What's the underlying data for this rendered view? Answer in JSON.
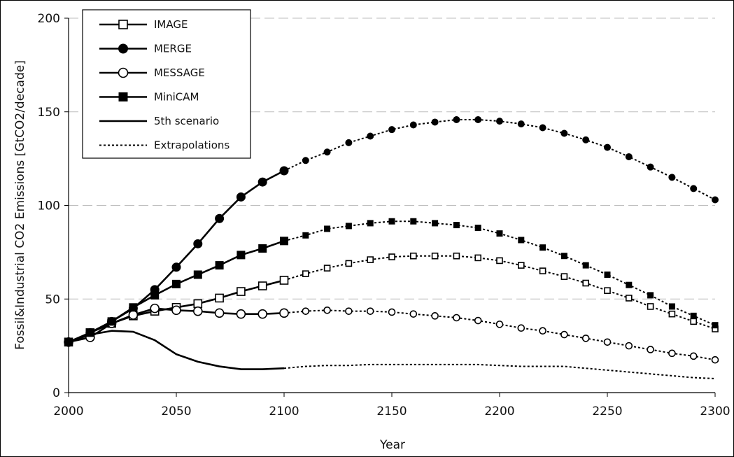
{
  "chart_data": {
    "type": "line",
    "title": "",
    "xlabel": "Year",
    "ylabel": "Fossil&Industrial CO2 Emissions [GtCO2/decade]",
    "xlim": [
      2000,
      2300
    ],
    "ylim": [
      0,
      200
    ],
    "x_ticks": [
      "2000",
      "2050",
      "2100",
      "2150",
      "2200",
      "2250",
      "2300"
    ],
    "y_ticks": [
      "0",
      "50",
      "100",
      "150",
      "200"
    ],
    "grid": "horizontal dashed",
    "legend_position": "top-left",
    "series": [
      {
        "name": "IMAGE",
        "marker": "open-square",
        "x": [
          2000,
          2010,
          2020,
          2030,
          2040,
          2050,
          2060,
          2070,
          2080,
          2090,
          2100
        ],
        "values": [
          27,
          32,
          37,
          41,
          43.5,
          45.5,
          47.5,
          50.5,
          54,
          57,
          60
        ],
        "extrapolation_x": [
          2110,
          2120,
          2130,
          2140,
          2150,
          2160,
          2170,
          2180,
          2190,
          2200,
          2210,
          2220,
          2230,
          2240,
          2250,
          2260,
          2270,
          2280,
          2290,
          2300
        ],
        "extrapolation_values": [
          63.5,
          66.5,
          69,
          71,
          72.5,
          73,
          73,
          73,
          72,
          70.5,
          68,
          65,
          62,
          58.5,
          54.5,
          50.5,
          46,
          42,
          38,
          34
        ]
      },
      {
        "name": "MERGE",
        "marker": "filled-circle",
        "x": [
          2000,
          2010,
          2020,
          2030,
          2040,
          2050,
          2060,
          2070,
          2080,
          2090,
          2100
        ],
        "values": [
          27,
          32,
          38,
          45,
          55,
          67,
          79.5,
          93,
          104.5,
          112.5,
          118.5
        ],
        "extrapolation_x": [
          2110,
          2120,
          2130,
          2140,
          2150,
          2160,
          2170,
          2180,
          2190,
          2200,
          2210,
          2220,
          2230,
          2240,
          2250,
          2260,
          2270,
          2280,
          2290,
          2300
        ],
        "extrapolation_values": [
          124,
          128.5,
          133.5,
          137,
          140.5,
          143,
          144.5,
          145.8,
          145.8,
          145,
          143.5,
          141.5,
          138.5,
          135,
          131,
          126,
          120.5,
          115,
          109,
          103
        ]
      },
      {
        "name": "MESSAGE",
        "marker": "open-circle",
        "x": [
          2000,
          2010,
          2020,
          2030,
          2040,
          2050,
          2060,
          2070,
          2080,
          2090,
          2100
        ],
        "values": [
          27,
          29.5,
          37,
          41.5,
          45,
          44,
          43.5,
          42.5,
          42,
          42,
          42.5
        ],
        "extrapolation_x": [
          2110,
          2120,
          2130,
          2140,
          2150,
          2160,
          2170,
          2180,
          2190,
          2200,
          2210,
          2220,
          2230,
          2240,
          2250,
          2260,
          2270,
          2280,
          2290,
          2300
        ],
        "extrapolation_values": [
          43.5,
          44,
          43.5,
          43.5,
          43,
          42,
          41,
          40,
          38.5,
          36.5,
          34.5,
          33,
          31,
          29,
          27,
          25,
          23,
          21,
          19.5,
          17.5
        ]
      },
      {
        "name": "MiniCAM",
        "marker": "filled-square",
        "x": [
          2000,
          2010,
          2020,
          2030,
          2040,
          2050,
          2060,
          2070,
          2080,
          2090,
          2100
        ],
        "values": [
          27,
          32,
          38,
          45.5,
          52,
          58,
          63,
          68,
          73.5,
          77,
          81
        ],
        "extrapolation_x": [
          2110,
          2120,
          2130,
          2140,
          2150,
          2160,
          2170,
          2180,
          2190,
          2200,
          2210,
          2220,
          2230,
          2240,
          2250,
          2260,
          2270,
          2280,
          2290,
          2300
        ],
        "extrapolation_values": [
          84,
          87.5,
          89,
          90.5,
          91.5,
          91.5,
          90.5,
          89.5,
          88,
          85,
          81.5,
          77.5,
          73,
          68,
          63,
          57.5,
          52,
          46,
          41,
          36
        ]
      },
      {
        "name": "5th scenario",
        "marker": "none",
        "x": [
          2000,
          2010,
          2020,
          2030,
          2040,
          2050,
          2060,
          2070,
          2080,
          2090,
          2100
        ],
        "values": [
          27,
          31,
          33,
          32.5,
          28,
          20.5,
          16.5,
          14,
          12.5,
          12.5,
          13
        ],
        "extrapolation_x": [
          2110,
          2120,
          2130,
          2140,
          2150,
          2160,
          2170,
          2180,
          2190,
          2200,
          2210,
          2220,
          2230,
          2240,
          2250,
          2260,
          2270,
          2280,
          2290,
          2300
        ],
        "extrapolation_values": [
          14,
          14.5,
          14.5,
          15,
          15,
          15,
          15,
          15,
          15,
          14.5,
          14,
          14,
          14,
          13,
          12,
          11,
          10,
          9,
          8,
          7.5
        ]
      }
    ],
    "legend_entries": [
      {
        "label": "IMAGE",
        "marker": "open-square",
        "style": "solid"
      },
      {
        "label": "MERGE",
        "marker": "filled-circle",
        "style": "solid"
      },
      {
        "label": "MESSAGE",
        "marker": "open-circle",
        "style": "solid"
      },
      {
        "label": "MiniCAM",
        "marker": "filled-square",
        "style": "solid"
      },
      {
        "label": "5th scenario",
        "marker": "none",
        "style": "solid"
      },
      {
        "label": "Extrapolations",
        "marker": "none",
        "style": "dotted"
      }
    ]
  }
}
